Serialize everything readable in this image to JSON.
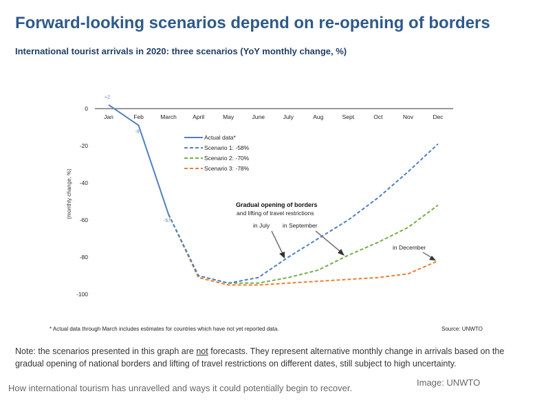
{
  "header": {
    "title": "Forward-looking scenarios depend on re-opening of borders",
    "subtitle": "International tourist arrivals in 2020: three scenarios (YoY monthly change, %)"
  },
  "chart_data": {
    "type": "line",
    "categories": [
      "Jan",
      "Feb",
      "March",
      "April",
      "May",
      "June",
      "July",
      "Aug",
      "Sept",
      "Oct",
      "Nov",
      "Dec"
    ],
    "ylabel": "(monthly change, %)",
    "ylim": [
      -100,
      0
    ],
    "yticks": [
      0,
      -20,
      -40,
      -60,
      -80,
      -100
    ],
    "grid": false,
    "legend_position": "upper-middle",
    "series": [
      {
        "name": "Actual data*",
        "style": "solid",
        "color": "#4f7fc0",
        "values": [
          2,
          -9,
          -57,
          null,
          null,
          null,
          null,
          null,
          null,
          null,
          null,
          null
        ]
      },
      {
        "name": "Scenario 1:  -58%",
        "style": "dashed",
        "color": "#4f7fc0",
        "values": [
          null,
          null,
          -57,
          -90,
          -94,
          -91,
          -80,
          -70,
          -60,
          -48,
          -34,
          -19
        ]
      },
      {
        "name": "Scenario 2:  -70%",
        "style": "dashed",
        "color": "#72ae48",
        "values": [
          null,
          null,
          -57,
          -90,
          -94,
          -94,
          -91,
          -87,
          -79,
          -72,
          -64,
          -52
        ]
      },
      {
        "name": "Scenario 3:  -78%",
        "style": "dashed",
        "color": "#ed7d31",
        "values": [
          null,
          null,
          -57,
          -91,
          -95,
          -95,
          -94,
          -93,
          -92,
          -91,
          -89,
          -82
        ]
      }
    ],
    "data_labels": [
      {
        "category": "Jan",
        "value": 2,
        "text": "+2"
      },
      {
        "category": "Feb",
        "value": -9,
        "text": "-9"
      },
      {
        "category": "March",
        "value": -57,
        "text": "-57"
      }
    ],
    "annotation": {
      "heading": "Gradual opening of borders",
      "line2": "and lifting of travel restrictions",
      "label_july": "in July",
      "label_september": "in September",
      "label_december": "in December"
    },
    "footnote": "* Actual data through March includes estimates for countries which have not yet reported data.",
    "source": "Source: UNWTO"
  },
  "note": {
    "part1": "Note: the scenarios presented in this graph are ",
    "emphasis": "not",
    "part2": " forecasts. They represent alternative monthly change in arrivals based on the gradual opening of national borders and lifting of travel restrictions on different dates, still subject to high uncertainty."
  },
  "caption": "How international tourism has unravelled and ways it could potentially begin to recover.",
  "credit": "Image: UNWTO"
}
